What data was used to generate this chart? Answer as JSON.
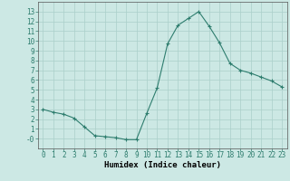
{
  "x": [
    0,
    1,
    2,
    3,
    4,
    5,
    6,
    7,
    8,
    9,
    10,
    11,
    12,
    13,
    14,
    15,
    16,
    17,
    18,
    19,
    20,
    21,
    22,
    23
  ],
  "y": [
    3.0,
    2.7,
    2.5,
    2.1,
    1.2,
    0.3,
    0.2,
    0.1,
    -0.1,
    -0.1,
    2.6,
    5.2,
    9.7,
    11.6,
    12.3,
    13.0,
    11.5,
    9.8,
    7.7,
    7.0,
    6.7,
    6.3,
    5.9,
    5.3
  ],
  "line_color": "#2e7d6e",
  "marker": "+",
  "bg_color": "#cce8e4",
  "grid_color": "#aacfca",
  "xlabel": "Humidex (Indice chaleur)",
  "ylim": [
    -1,
    14
  ],
  "xlim": [
    -0.5,
    23.5
  ],
  "yticks": [
    0,
    1,
    2,
    3,
    4,
    5,
    6,
    7,
    8,
    9,
    10,
    11,
    12,
    13
  ],
  "xticks": [
    0,
    1,
    2,
    3,
    4,
    5,
    6,
    7,
    8,
    9,
    10,
    11,
    12,
    13,
    14,
    15,
    16,
    17,
    18,
    19,
    20,
    21,
    22,
    23
  ],
  "label_fontsize": 6.5,
  "tick_fontsize": 5.5
}
